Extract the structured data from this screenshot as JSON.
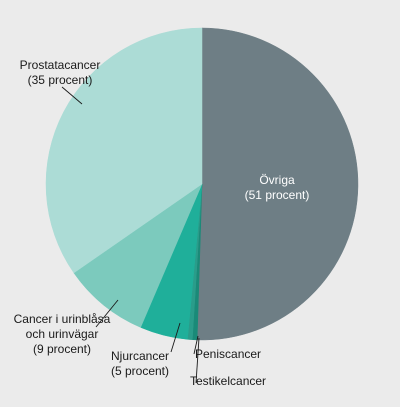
{
  "chart_data": {
    "type": "pie",
    "title": "",
    "start_angle_deg": 0,
    "direction": "clockwise",
    "slices": [
      {
        "name": "Övriga",
        "value": 51,
        "color": "#6e7e85",
        "label_lines": [
          "Övriga",
          "(51 procent)"
        ]
      },
      {
        "name": "Testikelcancer",
        "value": 0.5,
        "color": "#1a8a78",
        "label_lines": [
          "Testikelcancer"
        ]
      },
      {
        "name": "Peniscancer",
        "value": 0.5,
        "color": "#2a9c8a",
        "label_lines": [
          "Peniscancer"
        ]
      },
      {
        "name": "Njurcancer",
        "value": 5,
        "color": "#1faf9a",
        "label_lines": [
          "Njurcancer",
          "(5 procent)"
        ]
      },
      {
        "name": "Cancer i urinblåsa och urinvägar",
        "value": 9,
        "color": "#7ccabd",
        "label_lines": [
          "Cancer i urinblåsa",
          "och urinvägar",
          "(9 procent)"
        ]
      },
      {
        "name": "Prostatacancer",
        "value": 35,
        "color": "#acdcd6",
        "label_lines": [
          "Prostatacancer",
          "(35 procent)"
        ]
      }
    ]
  }
}
